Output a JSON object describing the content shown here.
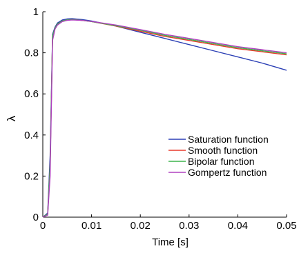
{
  "chart_data": {
    "type": "line",
    "title": "",
    "xlabel": "Time [s]",
    "ylabel": "λ",
    "xlim": [
      0,
      0.05
    ],
    "ylim": [
      0,
      1
    ],
    "grid": false,
    "legend_position": "bottom-right",
    "x_ticks": [
      {
        "value": 0,
        "label": "0"
      },
      {
        "value": 0.01,
        "label": "0.01"
      },
      {
        "value": 0.02,
        "label": "0.02"
      },
      {
        "value": 0.03,
        "label": "0.03"
      },
      {
        "value": 0.04,
        "label": "0.04"
      },
      {
        "value": 0.05,
        "label": "0.05"
      }
    ],
    "y_ticks": [
      {
        "value": 0,
        "label": "0"
      },
      {
        "value": 0.2,
        "label": "0.2"
      },
      {
        "value": 0.4,
        "label": "0.4"
      },
      {
        "value": 0.6,
        "label": "0.6"
      },
      {
        "value": 0.8,
        "label": "0.8"
      },
      {
        "value": 1,
        "label": "1"
      }
    ],
    "series": [
      {
        "name": "Saturation function",
        "color": "#2b3fb5",
        "x": [
          0,
          0.001,
          0.0015,
          0.002,
          0.0025,
          0.003,
          0.004,
          0.005,
          0.006,
          0.008,
          0.01,
          0.015,
          0.02,
          0.025,
          0.03,
          0.035,
          0.04,
          0.045,
          0.05
        ],
        "y": [
          0,
          0.02,
          0.3,
          0.89,
          0.925,
          0.945,
          0.96,
          0.965,
          0.966,
          0.962,
          0.955,
          0.93,
          0.9,
          0.87,
          0.84,
          0.81,
          0.78,
          0.75,
          0.715
        ]
      },
      {
        "name": "Smooth function",
        "color": "#e8392b",
        "x": [
          0,
          0.001,
          0.0015,
          0.002,
          0.0025,
          0.003,
          0.004,
          0.005,
          0.006,
          0.008,
          0.01,
          0.015,
          0.02,
          0.025,
          0.03,
          0.035,
          0.04,
          0.045,
          0.05
        ],
        "y": [
          0,
          0.015,
          0.25,
          0.88,
          0.92,
          0.94,
          0.955,
          0.96,
          0.962,
          0.958,
          0.952,
          0.93,
          0.905,
          0.88,
          0.86,
          0.84,
          0.82,
          0.805,
          0.79
        ]
      },
      {
        "name": "Bipolar function",
        "color": "#3cb44b",
        "x": [
          0,
          0.001,
          0.0015,
          0.002,
          0.0025,
          0.003,
          0.004,
          0.005,
          0.006,
          0.008,
          0.01,
          0.015,
          0.02,
          0.025,
          0.03,
          0.035,
          0.04,
          0.045,
          0.05
        ],
        "y": [
          0,
          0.015,
          0.25,
          0.88,
          0.92,
          0.94,
          0.955,
          0.96,
          0.962,
          0.958,
          0.952,
          0.932,
          0.91,
          0.885,
          0.865,
          0.845,
          0.825,
          0.81,
          0.795
        ]
      },
      {
        "name": "Gompertz function",
        "color": "#b040c0",
        "x": [
          0,
          0.001,
          0.0015,
          0.002,
          0.0025,
          0.003,
          0.004,
          0.005,
          0.006,
          0.008,
          0.01,
          0.015,
          0.02,
          0.025,
          0.03,
          0.035,
          0.04,
          0.045,
          0.05
        ],
        "y": [
          0,
          0.01,
          0.2,
          0.86,
          0.915,
          0.935,
          0.952,
          0.958,
          0.96,
          0.958,
          0.953,
          0.935,
          0.913,
          0.89,
          0.87,
          0.85,
          0.83,
          0.815,
          0.8
        ]
      }
    ]
  }
}
